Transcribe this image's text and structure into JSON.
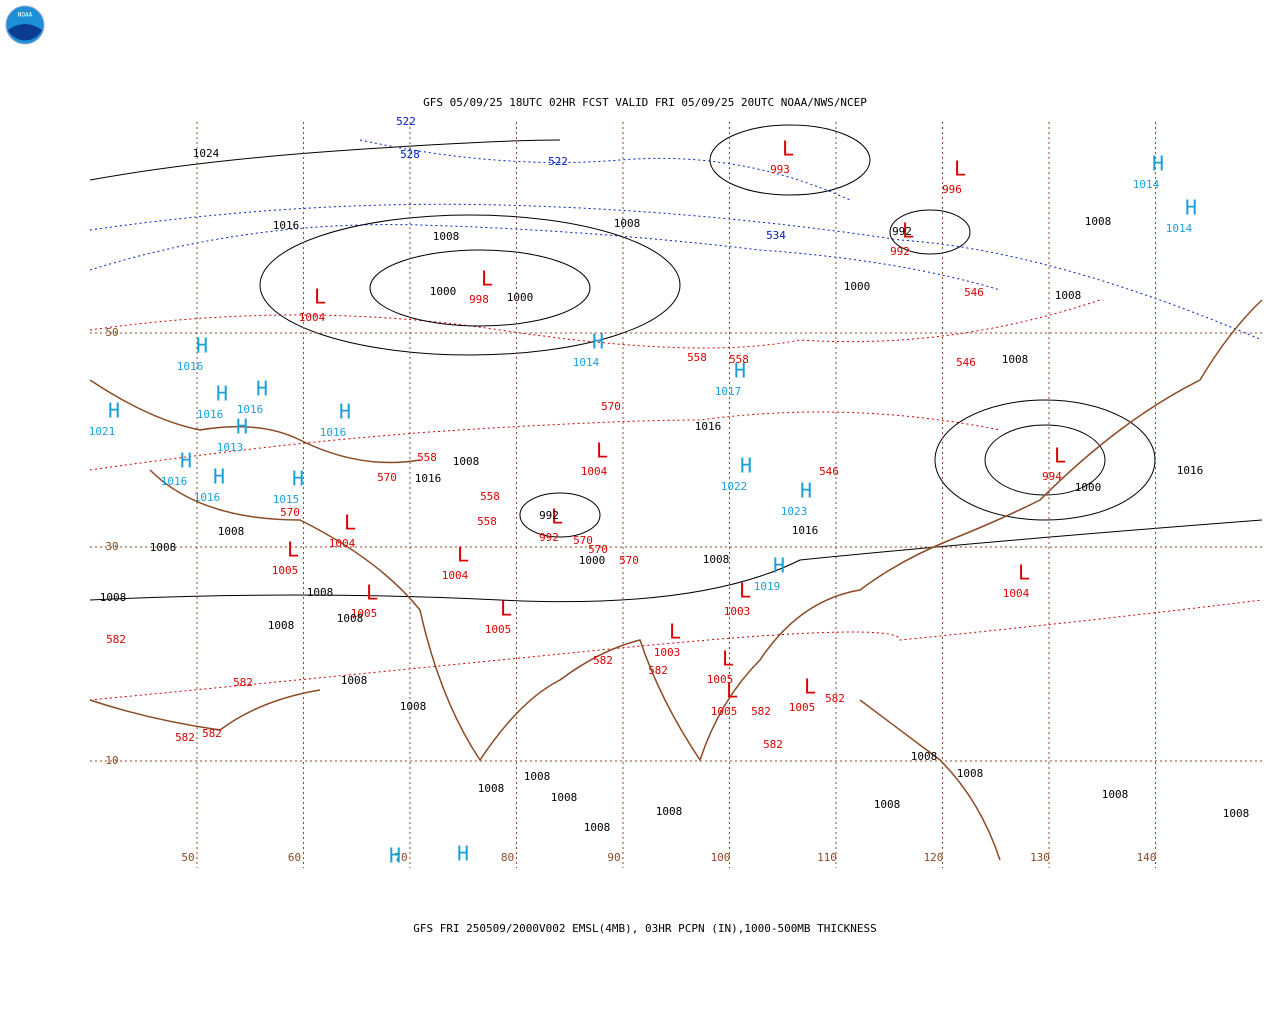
{
  "header": {
    "title": "GFS 05/09/25 18UTC 02HR FCST VALID FRI 05/09/25 20UTC NOAA/NWS/NCEP",
    "caption": "GFS FRI 250509/2000V002 EMSL(4MB), 03HR PCPN (IN),1000-500MB THICKNESS",
    "logo": "NOAA"
  },
  "grid": {
    "lons": [
      50,
      60,
      70,
      80,
      90,
      100,
      110,
      120,
      130,
      140
    ],
    "lats": [
      50,
      30,
      10
    ]
  },
  "highs": [
    {
      "label": "H",
      "value": 1016
    },
    {
      "label": "H",
      "value": 1016
    },
    {
      "label": "H",
      "value": 1016
    },
    {
      "label": "H",
      "value": 1021
    },
    {
      "label": "H",
      "value": 1013
    },
    {
      "label": "H",
      "value": 1016
    },
    {
      "label": "H",
      "value": 1016
    },
    {
      "label": "H",
      "value": 1015
    },
    {
      "label": "H",
      "value": 1016
    },
    {
      "label": "H",
      "value": 1014
    },
    {
      "label": "H",
      "value": 1017
    },
    {
      "label": "H",
      "value": 1022
    },
    {
      "label": "H",
      "value": 1023
    },
    {
      "label": "H",
      "value": 1019
    },
    {
      "label": "H",
      "value": 1014
    },
    {
      "label": "H",
      "value": 1014
    },
    {
      "label": "H"
    },
    {
      "label": "H"
    }
  ],
  "lows": [
    {
      "label": "L",
      "value": 993
    },
    {
      "label": "L",
      "value": 996
    },
    {
      "label": "L",
      "value": 998
    },
    {
      "label": "L",
      "value": 1004
    },
    {
      "label": "L",
      "value": 992
    },
    {
      "label": "L",
      "value": 1004
    },
    {
      "label": "L",
      "value": 992
    },
    {
      "label": "L",
      "value": 1004
    },
    {
      "label": "L",
      "value": 1005
    },
    {
      "label": "L",
      "value": 1004
    },
    {
      "label": "L",
      "value": 1005
    },
    {
      "label": "L",
      "value": 1005
    },
    {
      "label": "L",
      "value": 994
    },
    {
      "label": "L",
      "value": 1004
    },
    {
      "label": "L",
      "value": 1003
    },
    {
      "label": "L",
      "value": 1003
    },
    {
      "label": "L",
      "value": 1005
    },
    {
      "label": "L",
      "value": 1005
    },
    {
      "label": "L",
      "value": 1005
    }
  ],
  "isobar_labels": [
    1024,
    1016,
    1008,
    1008,
    1000,
    1000,
    1000,
    1008,
    1008,
    1008,
    1016,
    1016,
    1008,
    1016,
    992,
    1000,
    1008,
    1008,
    1008,
    1008,
    1008,
    1008,
    1008,
    1008,
    1008,
    1008,
    1008,
    1008,
    1008,
    1008,
    1008,
    1008,
    1008,
    1008,
    1008,
    1000,
    1016,
    992
  ],
  "thickness_labels_warm": [
    558,
    558,
    546,
    546,
    546,
    570,
    570,
    570,
    570,
    570,
    570,
    582,
    582,
    582,
    582,
    582,
    582,
    582,
    582,
    582,
    558,
    558,
    558
  ],
  "thickness_labels_cold": [
    522,
    528,
    522,
    534
  ]
}
